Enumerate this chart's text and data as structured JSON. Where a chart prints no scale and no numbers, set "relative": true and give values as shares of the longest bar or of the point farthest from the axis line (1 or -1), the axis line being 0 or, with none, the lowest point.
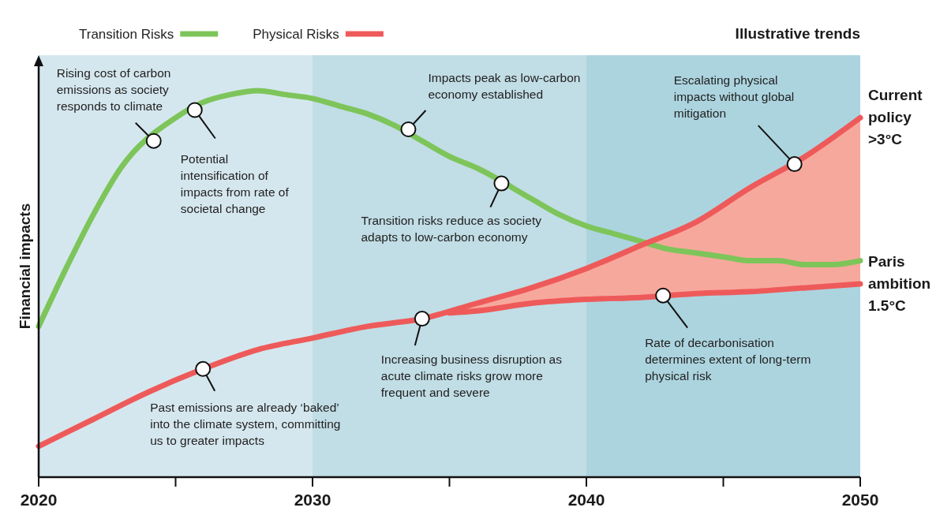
{
  "chart_data": {
    "type": "line",
    "subtitle": "Illustrative trends",
    "ylabel": "Financial impacts",
    "relative": true,
    "legend": "top",
    "tick_labels": "x",
    "grid": false,
    "marker": "none",
    "line_style": "solid",
    "xlim": [
      2020,
      2050
    ],
    "xticks": [
      2020,
      {
        "value": 2025,
        "label": null
      },
      2030,
      {
        "value": 2035,
        "label": null
      },
      2040,
      {
        "value": 2045,
        "label": null
      },
      2050
    ],
    "bands": [
      {
        "axis": "x",
        "from": 2020,
        "to": 2030,
        "label": null,
        "color": "#d5e7ee"
      },
      {
        "axis": "x",
        "from": 2030,
        "to": 2040,
        "label": null,
        "color": "#c1dde5"
      },
      {
        "axis": "x",
        "from": 2040,
        "to": 2050,
        "label": null,
        "color": "#acd4df"
      }
    ],
    "series": [
      {
        "name": "Transition Risks",
        "color": "#7dc55a",
        "x": [
          2020,
          2021,
          2022,
          2023,
          2025,
          2026,
          2027,
          2028,
          2029,
          2030,
          2031,
          2032,
          2033,
          2034,
          2035,
          2036,
          2038,
          2039,
          2040,
          2041,
          2042,
          2043,
          2044,
          2045,
          2046,
          2047,
          2048,
          2049,
          2050
        ],
        "values": [
          0.39,
          0.54,
          0.68,
          0.8,
          0.93,
          0.97,
          0.99,
          1,
          0.99,
          0.98,
          0.96,
          0.94,
          0.91,
          0.87,
          0.83,
          0.8,
          0.72,
          0.68,
          0.65,
          0.63,
          0.61,
          0.59,
          0.58,
          0.57,
          0.56,
          0.56,
          0.55,
          0.55,
          0.56
        ]
      },
      {
        "name": "Physical Risks",
        "color": "#ee5a5a",
        "x": [
          2020,
          2022,
          2024,
          2026,
          2028,
          2030,
          2032,
          2034,
          2036,
          2038,
          2040,
          2042,
          2044,
          2046,
          2048,
          2050
        ],
        "values": [
          0.08,
          0.15,
          0.22,
          0.28,
          0.33,
          0.36,
          0.39,
          0.41,
          0.45,
          0.49,
          0.54,
          0.6,
          0.66,
          0.75,
          0.83,
          0.93
        ],
        "lower": [
          0.08,
          0.15,
          0.22,
          0.28,
          0.33,
          0.36,
          0.39,
          0.41,
          0.43,
          0.45,
          0.46,
          0.465,
          0.475,
          0.48,
          0.49,
          0.5
        ],
        "upper": [
          0.08,
          0.15,
          0.22,
          0.28,
          0.33,
          0.36,
          0.39,
          0.41,
          0.45,
          0.49,
          0.54,
          0.6,
          0.66,
          0.75,
          0.83,
          0.93
        ]
      },
      {
        "color": "#ee5a5a",
        "x": [
          2035,
          2036,
          2038,
          2040,
          2042,
          2044,
          2046,
          2048,
          2050
        ],
        "values": [
          0.425,
          0.43,
          0.45,
          0.46,
          0.465,
          0.475,
          0.48,
          0.49,
          0.5
        ]
      }
    ],
    "annotations": [
      {
        "text": "Rising cost of carbon emissions as society responds to climate",
        "x": 2024.2,
        "y": 0.87
      },
      {
        "text": "Potential intensification of impacts from rate of societal change",
        "x": 2025.7,
        "y": 0.95
      },
      {
        "text": "Impacts peak as low-carbon economy established",
        "x": 2033.5,
        "y": 0.9
      },
      {
        "text": "Transition risks reduce as society adapts to low-carbon economy",
        "x": 2036.9,
        "y": 0.76
      },
      {
        "text": "Escalating physical impacts without global mitigation",
        "x": 2047.6,
        "y": 0.81
      },
      {
        "text": "Past emissions are already ‘baked’ into the climate system, committing us to greater impacts",
        "x": 2026,
        "y": 0.28
      },
      {
        "text": "Increasing business disruption as acute climate risks grow more frequent and severe",
        "x": 2034,
        "y": 0.41
      },
      {
        "text": "Rate of decarbonisation determines extent of long-term physical risk",
        "x": 2042.8,
        "y": 0.47
      },
      {
        "text": "Current policy >3°C",
        "x": 2050,
        "y": 0.93
      },
      {
        "text": "Paris ambition 1.5°C",
        "x": 2050,
        "y": 0.5
      }
    ]
  }
}
